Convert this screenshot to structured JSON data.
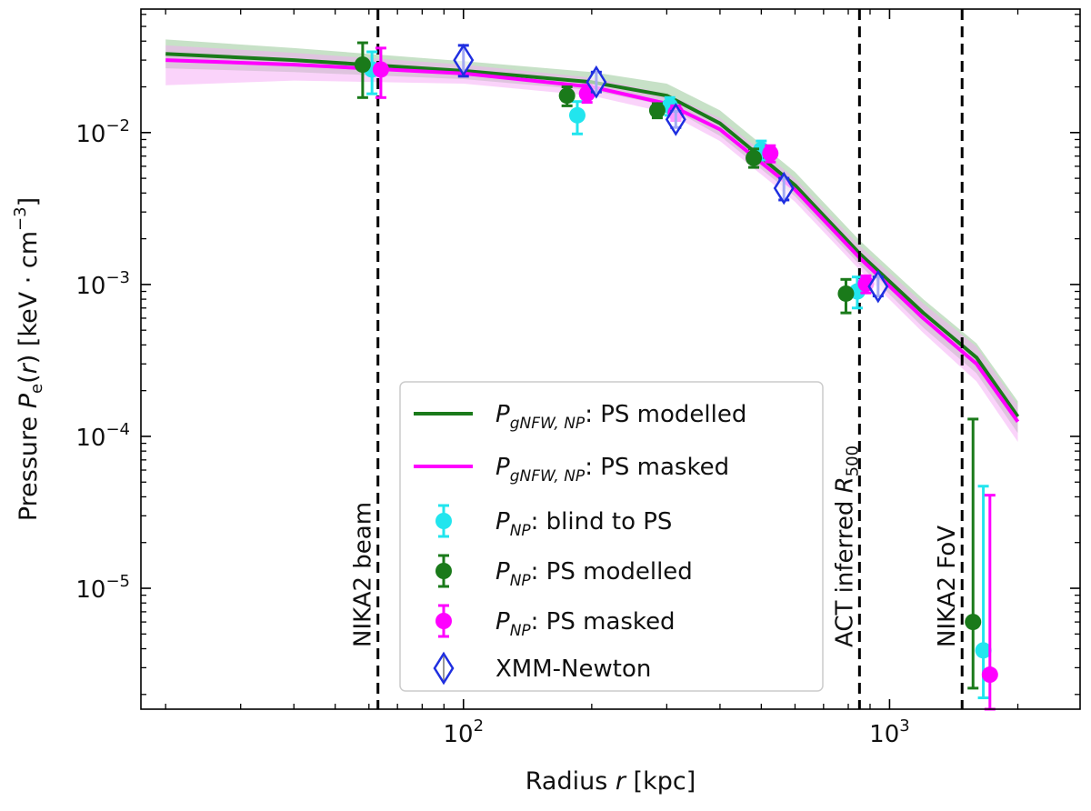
{
  "chart_data": {
    "type": "scatter",
    "title": "",
    "xlabel": "Radius r [kpc]",
    "ylabel": "Pressure Pe(r) [keV · cm⁻³]",
    "xscale": "log",
    "yscale": "log",
    "xlim": [
      17.5,
      2800
    ],
    "ylim": [
      1.6e-06,
      0.065
    ],
    "grid": false,
    "legend_position": "lower-center",
    "x_ticks": [
      {
        "value": 100,
        "base": "10",
        "exp": "2"
      },
      {
        "value": 1000,
        "base": "10",
        "exp": "3"
      }
    ],
    "y_ticks": [
      {
        "value": 1e-05,
        "base": "10",
        "exp": "−5"
      },
      {
        "value": 0.0001,
        "base": "10",
        "exp": "−4"
      },
      {
        "value": 0.001,
        "base": "10",
        "exp": "−3"
      },
      {
        "value": 0.01,
        "base": "10",
        "exp": "−2"
      }
    ],
    "vlines": [
      {
        "x": 63,
        "label": "NIKA2 beam"
      },
      {
        "x": 850,
        "label": "ACT inferred R500"
      },
      {
        "x": 1480,
        "label": "NIKA2 FoV"
      }
    ],
    "curves": [
      {
        "name": "P gNFW, NP: PS modelled",
        "color": "#1a7a1a",
        "band_color": "#8fc48f",
        "points": [
          [
            20,
            0.033
          ],
          [
            40,
            0.03
          ],
          [
            100,
            0.0255
          ],
          [
            200,
            0.0215
          ],
          [
            300,
            0.0175
          ],
          [
            400,
            0.0115
          ],
          [
            600,
            0.0045
          ],
          [
            850,
            0.0016
          ],
          [
            1200,
            0.00065
          ],
          [
            1600,
            0.00033
          ],
          [
            2000,
            0.000135
          ]
        ],
        "band_lower": [
          [
            20,
            0.0265
          ],
          [
            40,
            0.025
          ],
          [
            100,
            0.0225
          ],
          [
            200,
            0.019
          ],
          [
            300,
            0.015
          ],
          [
            400,
            0.0095
          ],
          [
            600,
            0.0038
          ],
          [
            850,
            0.00135
          ],
          [
            1200,
            0.00052
          ],
          [
            1600,
            0.00026
          ],
          [
            2000,
            0.000105
          ]
        ],
        "band_upper": [
          [
            20,
            0.041
          ],
          [
            40,
            0.036
          ],
          [
            100,
            0.0295
          ],
          [
            200,
            0.025
          ],
          [
            300,
            0.021
          ],
          [
            400,
            0.014
          ],
          [
            600,
            0.0055
          ],
          [
            850,
            0.00195
          ],
          [
            1200,
            0.0008
          ],
          [
            1600,
            0.00041
          ],
          [
            2000,
            0.00017
          ]
        ]
      },
      {
        "name": "P gNFW, NP: PS masked",
        "color": "#ff00ff",
        "band_color": "#f5a8f5",
        "points": [
          [
            20,
            0.03
          ],
          [
            40,
            0.028
          ],
          [
            100,
            0.0245
          ],
          [
            200,
            0.02
          ],
          [
            300,
            0.0155
          ],
          [
            400,
            0.0105
          ],
          [
            600,
            0.0042
          ],
          [
            850,
            0.0015
          ],
          [
            1200,
            0.0006
          ],
          [
            1600,
            0.0003
          ],
          [
            2000,
            0.000125
          ]
        ],
        "band_lower": [
          [
            20,
            0.0205
          ],
          [
            40,
            0.022
          ],
          [
            100,
            0.021
          ],
          [
            200,
            0.0175
          ],
          [
            300,
            0.0135
          ],
          [
            400,
            0.0088
          ],
          [
            600,
            0.0035
          ],
          [
            850,
            0.00125
          ],
          [
            1200,
            0.00048
          ],
          [
            1600,
            0.00023
          ],
          [
            2000,
            9.2e-05
          ]
        ],
        "band_upper": [
          [
            20,
            0.0375
          ],
          [
            40,
            0.0335
          ],
          [
            100,
            0.028
          ],
          [
            200,
            0.023
          ],
          [
            300,
            0.018
          ],
          [
            400,
            0.0125
          ],
          [
            600,
            0.005
          ],
          [
            850,
            0.0018
          ],
          [
            1200,
            0.00075
          ],
          [
            1600,
            0.00039
          ],
          [
            2000,
            0.00016
          ]
        ]
      }
    ],
    "series": [
      {
        "name": "PNP: blind to PS",
        "color": "#22e5ee",
        "marker": "circle",
        "points": [
          {
            "x": 61,
            "y": 0.026,
            "lo": 0.018,
            "hi": 0.034
          },
          {
            "x": 185,
            "y": 0.013,
            "lo": 0.0098,
            "hi": 0.016
          },
          {
            "x": 305,
            "y": 0.015,
            "lo": 0.013,
            "hi": 0.017
          },
          {
            "x": 500,
            "y": 0.0077,
            "lo": 0.0066,
            "hi": 0.0088
          },
          {
            "x": 840,
            "y": 0.0009,
            "lo": 0.0007,
            "hi": 0.00112
          },
          {
            "x": 1660,
            "y": 3.9e-06,
            "lo": 1.9e-06,
            "hi": 4.7e-05
          }
        ]
      },
      {
        "name": "PNP: PS modelled",
        "color": "#1a7a1a",
        "marker": "circle",
        "points": [
          {
            "x": 58,
            "y": 0.028,
            "lo": 0.017,
            "hi": 0.039
          },
          {
            "x": 175,
            "y": 0.0175,
            "lo": 0.015,
            "hi": 0.02
          },
          {
            "x": 285,
            "y": 0.014,
            "lo": 0.0125,
            "hi": 0.0155
          },
          {
            "x": 480,
            "y": 0.0068,
            "lo": 0.0059,
            "hi": 0.0078
          },
          {
            "x": 790,
            "y": 0.00087,
            "lo": 0.00065,
            "hi": 0.00108
          },
          {
            "x": 1570,
            "y": 6e-06,
            "lo": 2.2e-06,
            "hi": 0.00013
          }
        ]
      },
      {
        "name": "PNP: PS masked",
        "color": "#ff00ff",
        "marker": "circle",
        "points": [
          {
            "x": 64,
            "y": 0.026,
            "lo": 0.017,
            "hi": 0.036
          },
          {
            "x": 195,
            "y": 0.018,
            "lo": 0.0158,
            "hi": 0.0205
          },
          {
            "x": 315,
            "y": 0.0135,
            "lo": 0.012,
            "hi": 0.015
          },
          {
            "x": 525,
            "y": 0.0073,
            "lo": 0.0064,
            "hi": 0.0082
          },
          {
            "x": 880,
            "y": 0.00101,
            "lo": 0.00088,
            "hi": 0.00114
          },
          {
            "x": 1720,
            "y": 2.7e-06,
            "lo": 1.6e-06,
            "hi": 4.1e-05
          }
        ]
      },
      {
        "name": "XMM-Newton",
        "color": "#1f2fe0",
        "marker": "diamond-open",
        "points": [
          {
            "x": 100,
            "y": 0.03,
            "lo": 0.0235,
            "hi": 0.0375
          },
          {
            "x": 205,
            "y": 0.0215,
            "lo": 0.0185,
            "hi": 0.025
          },
          {
            "x": 315,
            "y": 0.0122,
            "lo": 0.0108,
            "hi": 0.0138
          },
          {
            "x": 565,
            "y": 0.0043,
            "lo": 0.0036,
            "hi": 0.005
          },
          {
            "x": 940,
            "y": 0.00097,
            "lo": 0.00084,
            "hi": 0.00112
          }
        ]
      }
    ],
    "legend": [
      {
        "key": "gnfw-modelled",
        "kind": "line",
        "color": "#1a7a1a",
        "sym": "P",
        "sub": "gNFW, NP",
        "text": ": PS modelled"
      },
      {
        "key": "gnfw-masked",
        "kind": "line",
        "color": "#ff00ff",
        "sym": "P",
        "sub": "gNFW, NP",
        "text": ": PS masked"
      },
      {
        "key": "np-blind",
        "kind": "circle",
        "color": "#22e5ee",
        "sym": "P",
        "sub": "NP",
        "text": ": blind to PS"
      },
      {
        "key": "np-modelled",
        "kind": "circle",
        "color": "#1a7a1a",
        "sym": "P",
        "sub": "NP",
        "text": ": PS modelled"
      },
      {
        "key": "np-masked",
        "kind": "circle",
        "color": "#ff00ff",
        "sym": "P",
        "sub": "NP",
        "text": ": PS masked"
      },
      {
        "key": "xmm",
        "kind": "diamond",
        "color": "#1f2fe0",
        "sym": "",
        "sub": "",
        "text": "XMM-Newton"
      }
    ]
  }
}
